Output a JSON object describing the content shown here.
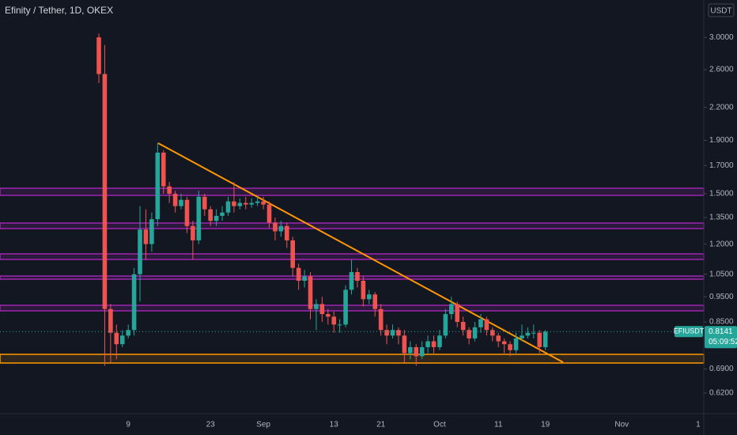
{
  "chart_data": {
    "type": "candlestick",
    "title": "Efinity / Tether, 1D, OKEX",
    "currency": "USDT",
    "symbol": "EFIUSDT",
    "last_price": 0.8141,
    "countdown": "05:09:52",
    "log_scale": true,
    "grid": false,
    "up_color": "#26a69a",
    "down_color": "#ef5350",
    "categories": [
      null,
      null,
      null,
      null,
      null,
      "9",
      null,
      null,
      null,
      null,
      null,
      null,
      null,
      null,
      null,
      null,
      null,
      null,
      null,
      "23",
      null,
      null,
      null,
      null,
      null,
      null,
      null,
      null,
      "Sep",
      null,
      null,
      null,
      null,
      null,
      null,
      null,
      null,
      null,
      null,
      null,
      "13",
      null,
      null,
      null,
      null,
      null,
      null,
      null,
      "21",
      null,
      null,
      null,
      null,
      null,
      null,
      null,
      null,
      null,
      "Oct",
      null,
      null,
      null,
      null,
      null,
      null,
      null,
      null,
      null,
      "11",
      null,
      null,
      null,
      null,
      null,
      null,
      null,
      "19",
      null,
      null,
      null,
      null,
      null,
      null,
      null,
      null,
      null,
      null,
      null,
      null,
      "Nov",
      null,
      null,
      null,
      null,
      null,
      null,
      null,
      null,
      null,
      null,
      null,
      null,
      "1"
    ],
    "open": [
      3.0,
      2.55,
      0.9,
      0.81,
      0.77,
      0.8,
      0.82,
      1.05,
      1.28,
      1.2,
      1.34,
      1.8,
      1.55,
      1.5,
      1.42,
      1.46,
      1.3,
      1.22,
      1.48,
      1.4,
      1.33,
      1.36,
      1.38,
      1.45,
      1.42,
      1.44,
      1.43,
      1.44,
      1.45,
      1.43,
      1.32,
      1.27,
      1.3,
      1.22,
      1.08,
      1.02,
      1.04,
      0.9,
      0.92,
      0.88,
      0.87,
      0.84,
      0.84,
      0.98,
      1.06,
      1.02,
      0.94,
      0.96,
      0.9,
      0.82,
      0.8,
      0.82,
      0.8,
      0.74,
      0.76,
      0.73,
      0.76,
      0.78,
      0.76,
      0.8,
      0.88,
      0.92,
      0.85,
      0.82,
      0.79,
      0.83,
      0.86,
      0.82,
      0.8,
      0.78,
      0.77,
      0.75,
      0.79,
      0.8,
      0.81,
      0.81,
      0.76,
      null,
      null,
      null,
      null,
      null,
      null,
      null,
      null,
      null,
      null,
      null,
      null,
      null,
      null,
      null,
      null,
      null,
      null,
      null,
      null,
      null,
      null,
      null,
      null,
      null,
      null
    ],
    "high": [
      3.05,
      2.9,
      0.92,
      0.84,
      0.82,
      0.84,
      1.08,
      1.42,
      1.4,
      1.38,
      1.88,
      1.82,
      1.58,
      1.52,
      1.5,
      1.48,
      1.33,
      1.52,
      1.5,
      1.42,
      1.4,
      1.42,
      1.48,
      1.58,
      1.47,
      1.48,
      1.47,
      1.48,
      1.48,
      1.45,
      1.35,
      1.33,
      1.32,
      1.24,
      1.1,
      1.07,
      1.06,
      0.94,
      0.95,
      0.9,
      0.89,
      0.86,
      1.0,
      1.12,
      1.08,
      1.04,
      0.98,
      0.97,
      0.92,
      0.84,
      0.84,
      0.83,
      0.82,
      0.78,
      0.77,
      0.78,
      0.8,
      0.8,
      0.82,
      0.9,
      0.95,
      0.93,
      0.87,
      0.83,
      0.85,
      0.88,
      0.87,
      0.83,
      0.81,
      0.79,
      0.78,
      0.81,
      0.84,
      0.83,
      0.84,
      0.82,
      0.82,
      null,
      null,
      null,
      null,
      null,
      null,
      null,
      null,
      null,
      null,
      null,
      null,
      null,
      null,
      null,
      null,
      null,
      null,
      null,
      null,
      null,
      null,
      null,
      null,
      null,
      null
    ],
    "low": [
      2.45,
      0.7,
      0.71,
      0.72,
      0.76,
      0.79,
      0.8,
      0.93,
      1.12,
      1.16,
      1.3,
      1.5,
      1.44,
      1.38,
      1.4,
      1.26,
      1.12,
      1.2,
      1.36,
      1.3,
      1.3,
      1.33,
      1.36,
      1.38,
      1.4,
      1.4,
      1.41,
      1.42,
      1.4,
      1.29,
      1.22,
      1.24,
      1.18,
      1.04,
      0.98,
      0.99,
      0.86,
      0.82,
      0.85,
      0.84,
      0.81,
      0.81,
      0.83,
      0.96,
      0.99,
      0.91,
      0.92,
      0.87,
      0.8,
      0.77,
      0.79,
      0.77,
      0.71,
      0.72,
      0.7,
      0.72,
      0.74,
      0.74,
      0.75,
      0.79,
      0.86,
      0.83,
      0.8,
      0.77,
      0.78,
      0.81,
      0.8,
      0.78,
      0.76,
      0.74,
      0.73,
      0.74,
      0.78,
      0.79,
      0.79,
      0.74,
      0.75,
      null,
      null,
      null,
      null,
      null,
      null,
      null,
      null,
      null,
      null,
      null,
      null,
      null,
      null,
      null,
      null,
      null,
      null,
      null,
      null,
      null,
      null,
      null,
      null,
      null,
      null
    ],
    "close": [
      2.55,
      0.9,
      0.81,
      0.77,
      0.8,
      0.82,
      1.05,
      1.28,
      1.2,
      1.34,
      1.8,
      1.55,
      1.5,
      1.42,
      1.46,
      1.3,
      1.22,
      1.48,
      1.4,
      1.33,
      1.36,
      1.38,
      1.45,
      1.42,
      1.44,
      1.43,
      1.44,
      1.45,
      1.43,
      1.32,
      1.27,
      1.3,
      1.22,
      1.08,
      1.02,
      1.04,
      0.9,
      0.92,
      0.88,
      0.87,
      0.84,
      0.84,
      0.98,
      1.06,
      1.02,
      0.94,
      0.96,
      0.9,
      0.82,
      0.8,
      0.82,
      0.8,
      0.74,
      0.76,
      0.73,
      0.76,
      0.78,
      0.76,
      0.8,
      0.88,
      0.92,
      0.85,
      0.82,
      0.79,
      0.83,
      0.86,
      0.82,
      0.8,
      0.78,
      0.77,
      0.75,
      0.79,
      0.8,
      0.81,
      0.81,
      0.76,
      0.8141,
      null,
      null,
      null,
      null,
      null,
      null,
      null,
      null,
      null,
      null,
      null,
      null,
      null,
      null,
      null,
      null,
      null,
      null,
      null,
      null,
      null,
      null,
      null,
      null,
      null,
      null
    ],
    "ylim": [
      0.572,
      3.54
    ],
    "yticks": [
      {
        "value": 3.0,
        "label": "3.0000"
      },
      {
        "value": 2.6,
        "label": "2.6000"
      },
      {
        "value": 2.2,
        "label": "2.2000"
      },
      {
        "value": 1.9,
        "label": "1.9000"
      },
      {
        "value": 1.7,
        "label": "1.7000"
      },
      {
        "value": 1.5,
        "label": "1.5000"
      },
      {
        "value": 1.35,
        "label": "1.3500"
      },
      {
        "value": 1.2,
        "label": "1.2000"
      },
      {
        "value": 1.05,
        "label": "1.0500"
      },
      {
        "value": 0.95,
        "label": "0.9500"
      },
      {
        "value": 0.85,
        "label": "0.8500"
      },
      {
        "value": 0.69,
        "label": "0.6900"
      },
      {
        "value": 0.62,
        "label": "0.6200"
      }
    ]
  }
}
